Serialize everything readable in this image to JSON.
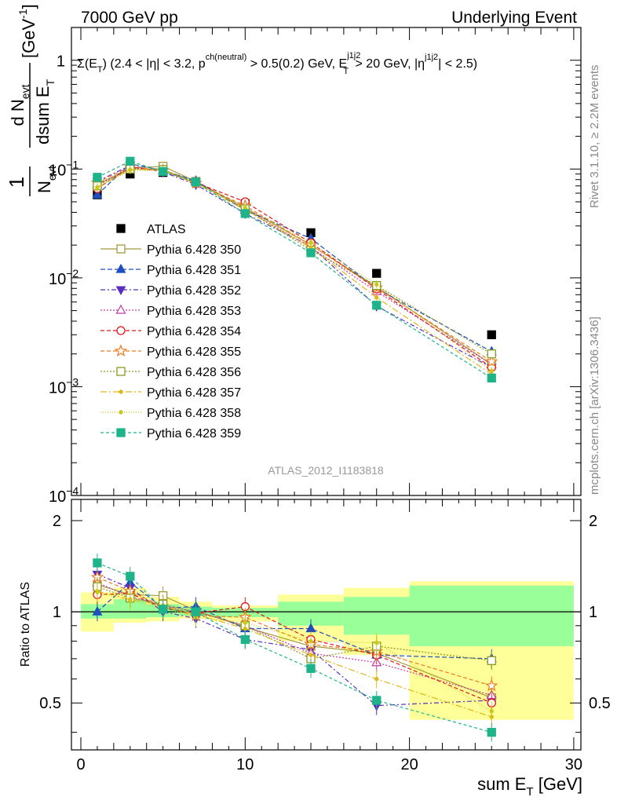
{
  "header": {
    "left": "7000 GeV pp",
    "right": "Underlying Event"
  },
  "side_labels": {
    "right_top": "Rivet 3.1.10, ≥ 2.2M events",
    "right_bottom": "mcplots.cern.ch [arXiv:1306.3436]"
  },
  "watermark": "ATLAS_2012_I1183818",
  "colors": {
    "ATLAS": "#000000",
    "Pythia 6.428 350": "#a89a3a",
    "Pythia 6.428 351": "#1f4fbf",
    "Pythia 6.428 352": "#5a2fbf",
    "Pythia 6.428 353": "#c23aa6",
    "Pythia 6.428 354": "#e0151b",
    "Pythia 6.428 355": "#ef7a1a",
    "Pythia 6.428 356": "#8a9a1f",
    "Pythia 6.428 357": "#e0b81a",
    "Pythia 6.428 358": "#c9c91a",
    "Pythia 6.428 359": "#1fb38a",
    "band_inner": "#99ff99",
    "band_outer": "#ffff99"
  },
  "chart_data": [
    {
      "type": "scatter",
      "panel": "main",
      "title": "Σ(E_T) (2.4 < |η| < 3.2, p_T^ch(neutral) > 0.5(0.2) GeV, E_T^j1j2 > 20 GeV, |η^j1j2| < 2.5)",
      "title_parts": {
        "lead": "Σ(E",
        "sub_t": "T",
        "mid1": ") (2.4 < |η| < 3.2, p",
        "sup_ch": "ch(neutral)",
        "mid2": " > 0.5(0.2) GeV, E",
        "sup_j": "j1j2",
        "sub_t2": "T",
        "mid3": " > 20 GeV, |η",
        "sup_j2": "j1j2",
        "tail": "| < 2.5)"
      },
      "ylabel": "1/N_evt dN_evt/dsum E_T [GeV^-1]",
      "ylabel_parts": {
        "one": "1",
        "n": "N",
        "evt": "evt",
        "dn": "d N",
        "evt2": "evt",
        "dsum": "dsum E",
        "t": "T",
        "unit": "[GeV",
        "pow": "-1",
        "close": "]"
      },
      "xlim": [
        -1,
        30
      ],
      "ylim": [
        0.0001,
        2
      ],
      "yscale": "log",
      "ytick_labels": [
        {
          "v": 1,
          "text": "1"
        },
        {
          "v": 0.1,
          "mant": "10",
          "exp": "−1"
        },
        {
          "v": 0.01,
          "mant": "10",
          "exp": "−2"
        },
        {
          "v": 0.001,
          "mant": "10",
          "exp": "−3"
        },
        {
          "v": 0.0001,
          "mant": "10",
          "exp": "−4"
        }
      ],
      "x": [
        1,
        3,
        5,
        7,
        10,
        14,
        18,
        25
      ],
      "series": [
        {
          "name": "ATLAS",
          "marker": "square-filled",
          "values": [
            0.058,
            0.09,
            0.093,
            0.076,
            0.048,
            0.026,
            0.011,
            0.003
          ]
        },
        {
          "name": "Pythia 6.428 350",
          "marker": "square-open",
          "dash": "none",
          "values": [
            0.072,
            0.102,
            0.106,
            0.077,
            0.044,
            0.02,
            0.0083,
            0.0016
          ]
        },
        {
          "name": "Pythia 6.428 351",
          "marker": "triangle-up-filled",
          "dash": "6,3",
          "values": [
            0.058,
            0.112,
            0.097,
            0.078,
            0.042,
            0.023,
            0.008,
            0.0021
          ]
        },
        {
          "name": "Pythia 6.428 352",
          "marker": "triangle-down-filled",
          "dash": "6,3,2,3",
          "values": [
            0.077,
            0.108,
            0.094,
            0.072,
            0.039,
            0.0195,
            0.0055,
            0.0015
          ]
        },
        {
          "name": "Pythia 6.428 353",
          "marker": "triangle-up-open",
          "dash": "2,2",
          "values": [
            0.072,
            0.101,
            0.098,
            0.076,
            0.043,
            0.019,
            0.0075,
            0.0016
          ]
        },
        {
          "name": "Pythia 6.428 354",
          "marker": "circle-open",
          "dash": "5,3",
          "values": [
            0.066,
            0.104,
            0.096,
            0.075,
            0.05,
            0.021,
            0.0079,
            0.0015
          ]
        },
        {
          "name": "Pythia 6.428 355",
          "marker": "star-open",
          "dash": "5,3",
          "values": [
            0.075,
            0.105,
            0.097,
            0.074,
            0.046,
            0.02,
            0.0081,
            0.0017
          ]
        },
        {
          "name": "Pythia 6.428 356",
          "marker": "square-open",
          "dash": "2,2",
          "values": [
            0.07,
            0.1,
            0.099,
            0.076,
            0.043,
            0.018,
            0.0085,
            0.002
          ]
        },
        {
          "name": "Pythia 6.428 357",
          "marker": "dot-filled",
          "dash": "8,3,2,3",
          "values": [
            0.068,
            0.099,
            0.098,
            0.074,
            0.042,
            0.019,
            0.0066,
            0.0013
          ]
        },
        {
          "name": "Pythia 6.428 358",
          "marker": "dot-filled",
          "dash": "1,2",
          "values": [
            0.067,
            0.098,
            0.096,
            0.073,
            0.044,
            0.021,
            0.0087,
            0.0014
          ]
        },
        {
          "name": "Pythia 6.428 359",
          "marker": "square-filled",
          "dash": "4,3",
          "values": [
            0.084,
            0.118,
            0.095,
            0.076,
            0.039,
            0.017,
            0.0056,
            0.0012
          ]
        }
      ],
      "legend": "middle-left",
      "grid": false
    },
    {
      "type": "scatter",
      "panel": "ratio",
      "ylabel": "Ratio to ATLAS",
      "xlabel": "sum E_T [GeV]",
      "xlabel_parts": {
        "main": "sum E",
        "sub": "T",
        "unit": " [GeV]"
      },
      "xlim": [
        -1,
        30
      ],
      "ylim": [
        0.35,
        2.35
      ],
      "yscale": "log",
      "xticks": [
        0,
        10,
        20,
        30
      ],
      "yticks": [
        0.5,
        1,
        2
      ],
      "bins": [
        [
          0,
          2
        ],
        [
          2,
          4
        ],
        [
          4,
          6
        ],
        [
          6,
          8
        ],
        [
          8,
          12
        ],
        [
          12,
          16
        ],
        [
          16,
          20
        ],
        [
          20,
          30
        ]
      ],
      "band_inner": [
        [
          0.95,
          1.06
        ],
        [
          0.95,
          1.1
        ],
        [
          0.96,
          1.06
        ],
        [
          0.97,
          1.04
        ],
        [
          0.96,
          1.03
        ],
        [
          0.9,
          1.08
        ],
        [
          0.84,
          1.12
        ],
        [
          0.77,
          1.22
        ]
      ],
      "band_outer": [
        [
          0.86,
          1.16
        ],
        [
          0.92,
          1.2
        ],
        [
          0.93,
          1.12
        ],
        [
          0.95,
          1.08
        ],
        [
          0.93,
          1.05
        ],
        [
          0.8,
          1.14
        ],
        [
          0.72,
          1.2
        ],
        [
          0.44,
          1.26
        ]
      ],
      "x": [
        1,
        3,
        5,
        7,
        10,
        14,
        18,
        25
      ],
      "series": [
        {
          "name": "Pythia 6.428 350",
          "values": [
            1.23,
            1.14,
            1.13,
            1.01,
            0.89,
            0.77,
            0.73,
            0.52
          ]
        },
        {
          "name": "Pythia 6.428 351",
          "values": [
            1.0,
            1.25,
            1.03,
            1.04,
            0.88,
            0.88,
            0.72,
            0.7
          ]
        },
        {
          "name": "Pythia 6.428 352",
          "values": [
            1.33,
            1.2,
            1.0,
            0.95,
            0.81,
            0.75,
            0.49,
            0.51
          ]
        },
        {
          "name": "Pythia 6.428 353",
          "values": [
            1.25,
            1.12,
            1.05,
            1.0,
            0.9,
            0.73,
            0.68,
            0.53
          ]
        },
        {
          "name": "Pythia 6.428 354",
          "values": [
            1.14,
            1.15,
            1.03,
            0.99,
            1.04,
            0.81,
            0.72,
            0.5
          ]
        },
        {
          "name": "Pythia 6.428 355",
          "values": [
            1.3,
            1.17,
            1.04,
            0.97,
            0.96,
            0.78,
            0.74,
            0.57
          ]
        },
        {
          "name": "Pythia 6.428 356",
          "values": [
            1.21,
            1.11,
            1.06,
            1.0,
            0.9,
            0.7,
            0.77,
            0.69
          ]
        },
        {
          "name": "Pythia 6.428 357",
          "values": [
            1.17,
            1.1,
            1.05,
            0.98,
            0.88,
            0.72,
            0.6,
            0.45
          ]
        },
        {
          "name": "Pythia 6.428 358",
          "values": [
            1.16,
            1.09,
            1.03,
            0.96,
            0.92,
            0.8,
            0.79,
            0.47
          ]
        },
        {
          "name": "Pythia 6.428 359",
          "values": [
            1.45,
            1.31,
            1.02,
            1.0,
            0.81,
            0.65,
            0.51,
            0.4
          ]
        }
      ]
    }
  ]
}
